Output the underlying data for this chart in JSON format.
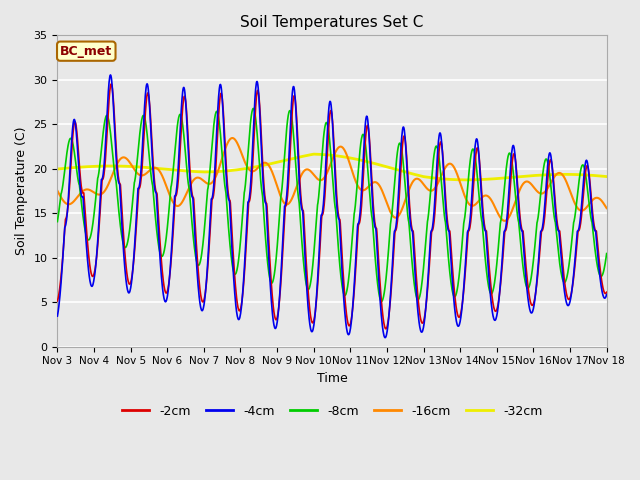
{
  "title": "Soil Temperatures Set C",
  "xlabel": "Time",
  "ylabel": "Soil Temperature (C)",
  "xlim": [
    0,
    15
  ],
  "ylim": [
    0,
    35
  ],
  "yticks": [
    0,
    5,
    10,
    15,
    20,
    25,
    30,
    35
  ],
  "xtick_labels": [
    "Nov 3",
    "Nov 4",
    "Nov 5",
    "Nov 6",
    "Nov 7",
    "Nov 8",
    "Nov 9",
    "Nov 10",
    "Nov 11",
    "Nov 12",
    "Nov 13",
    "Nov 14",
    "Nov 15",
    "Nov 16",
    "Nov 17",
    "Nov 18"
  ],
  "xtick_positions": [
    0,
    1,
    2,
    3,
    4,
    5,
    6,
    7,
    8,
    9,
    10,
    11,
    12,
    13,
    14,
    15
  ],
  "legend_labels": [
    "-2cm",
    "-4cm",
    "-8cm",
    "-16cm",
    "-32cm"
  ],
  "line_colors": [
    "#dd0000",
    "#0000ee",
    "#00cc00",
    "#ff8800",
    "#eeee00"
  ],
  "line_widths": [
    1.2,
    1.2,
    1.2,
    1.5,
    2.0
  ],
  "annotation_text": "BC_met",
  "plot_bg_color": "#e8e8e8",
  "fig_bg_color": "#e8e8e8",
  "grid_color": "#ffffff",
  "figsize": [
    6.4,
    4.8
  ],
  "dpi": 100
}
